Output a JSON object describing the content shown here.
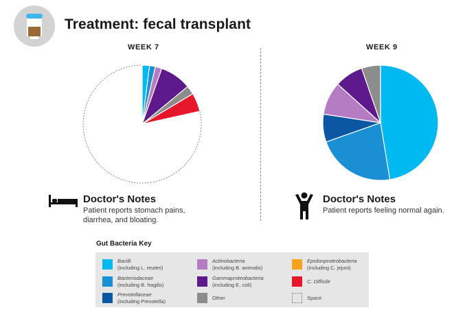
{
  "header": {
    "title": "Treatment: fecal transplant",
    "icon": "specimen-jar-icon"
  },
  "colors": {
    "bacilli": "#00b9f1",
    "bacteriodaceae": "#1a8fd3",
    "prevotellaceae": "#0b57a4",
    "actinobacteria": "#b57cc4",
    "gammaproteobacteria": "#5e1a8c",
    "other": "#8c8c8c",
    "epsilonproteobacteria": "#f7a21b",
    "c_difficile": "#e8162b"
  },
  "chart_data": [
    {
      "type": "pie",
      "title": "WEEK 7",
      "slices": [
        {
          "name": "Bacilli",
          "value": 2.0,
          "color": "#00b9f1"
        },
        {
          "name": "Bacteriodaceae",
          "value": 1.6,
          "color": "#1a8fd3"
        },
        {
          "name": "Actinobacteria",
          "value": 1.8,
          "color": "#b57cc4"
        },
        {
          "name": "Gammaproteobacteria",
          "value": 8.6,
          "color": "#5e1a8c"
        },
        {
          "name": "Other",
          "value": 2.4,
          "color": "#8c8c8c"
        },
        {
          "name": "C. Difficile",
          "value": 5.1,
          "color": "#e8162b"
        },
        {
          "name": "Space",
          "value": 78.5,
          "color": "none"
        }
      ]
    },
    {
      "type": "pie",
      "title": "WEEK 9",
      "slices": [
        {
          "name": "Bacilli",
          "value": 47.4,
          "color": "#00b9f1"
        },
        {
          "name": "Bacteriodaceae",
          "value": 22.2,
          "color": "#1a8fd3"
        },
        {
          "name": "Prevotellaceae",
          "value": 7.8,
          "color": "#0b57a4"
        },
        {
          "name": "Actinobacteria",
          "value": 9.3,
          "color": "#b57cc4"
        },
        {
          "name": "Gammaproteobacteria",
          "value": 8.0,
          "color": "#5e1a8c"
        },
        {
          "name": "Other",
          "value": 5.3,
          "color": "#8c8c8c"
        }
      ]
    }
  ],
  "notes": [
    {
      "icon": "bed-icon",
      "title": "Doctor's Notes",
      "lines": [
        "Patient reports stomach pains,",
        "diarrhea, and bloating."
      ]
    },
    {
      "icon": "person-arms-raised-icon",
      "title": "Doctor's Notes",
      "lines": [
        "Patient reports feeling normal again."
      ]
    }
  ],
  "key": {
    "title": "Gut Bacteria Key",
    "items": [
      {
        "name": "Bacilli",
        "sub": "(including L. reuteri)",
        "color": "#00b9f1"
      },
      {
        "name": "Bacteriodaceae",
        "sub": "(including B. fragilis)",
        "color": "#1a8fd3"
      },
      {
        "name": "Prevotellaceae",
        "sub": "(including Prevotella)",
        "color": "#0b57a4"
      },
      {
        "name": "Actinobacteria",
        "sub": "(including B. animalis)",
        "color": "#b57cc4"
      },
      {
        "name": "Gammaproteobacteria",
        "sub": "(including E. coli)",
        "color": "#5e1a8c"
      },
      {
        "name": "Other",
        "sub": "",
        "color": "#8c8c8c"
      },
      {
        "name": "Epsilonproteobacteria",
        "sub": "(including C. jejuni)",
        "color": "#f7a21b"
      },
      {
        "name": "C. Difficile",
        "sub": "",
        "color": "#e8162b"
      },
      {
        "name": "Space",
        "sub": "",
        "color": "none"
      }
    ]
  }
}
